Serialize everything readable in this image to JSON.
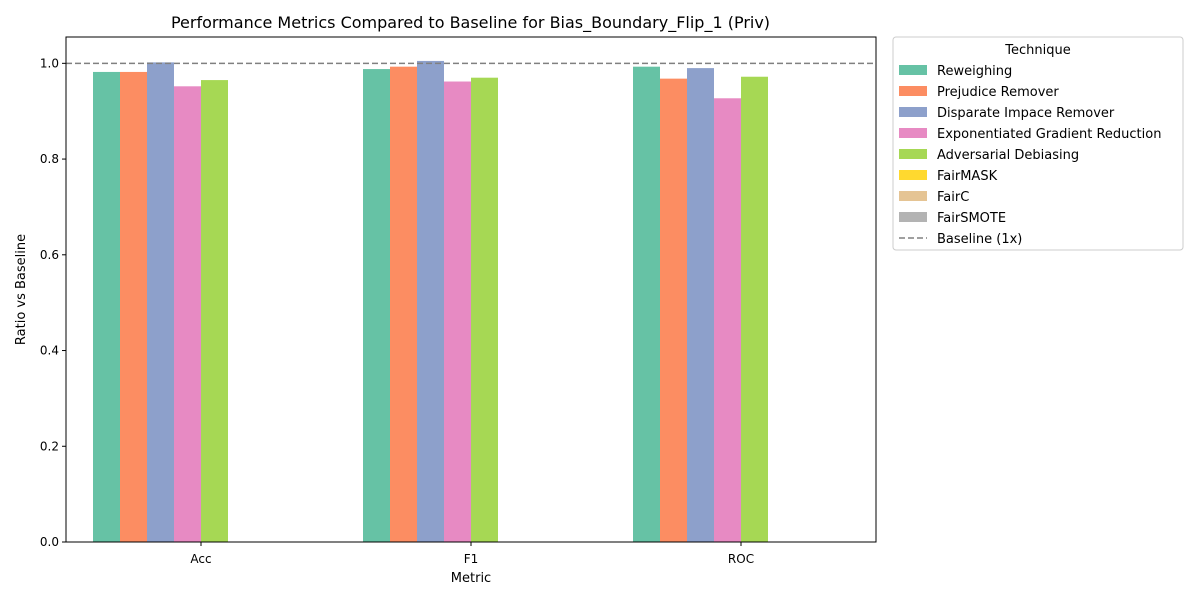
{
  "chart_data": {
    "type": "bar",
    "title": "Performance Metrics Compared to Baseline for Bias_Boundary_Flip_1 (Priv)",
    "xlabel": "Metric",
    "ylabel": "Ratio vs Baseline",
    "categories": [
      "Acc",
      "F1",
      "ROC"
    ],
    "ylim": [
      0,
      1.055
    ],
    "yticks": [
      "0.0",
      "0.2",
      "0.4",
      "0.6",
      "0.8",
      "1.0"
    ],
    "ytick_values": [
      0,
      0.2,
      0.4,
      0.6,
      0.8,
      1.0
    ],
    "series": [
      {
        "name": "Reweighing",
        "color": "#66c2a5",
        "values": [
          0.982,
          0.988,
          0.993
        ]
      },
      {
        "name": "Prejudice Remover",
        "color": "#fc8d62",
        "values": [
          0.982,
          0.993,
          0.968
        ]
      },
      {
        "name": "Disparate Impace Remover",
        "color": "#8da0cb",
        "values": [
          1.002,
          1.005,
          0.99
        ]
      },
      {
        "name": "Exponentiated Gradient Reduction",
        "color": "#e78ac3",
        "values": [
          0.952,
          0.962,
          0.927
        ]
      },
      {
        "name": "Adversarial Debiasing",
        "color": "#a6d854",
        "values": [
          0.965,
          0.97,
          0.972
        ]
      },
      {
        "name": "FairMASK",
        "color": "#ffd92f",
        "values": [
          null,
          null,
          null
        ]
      },
      {
        "name": "FairC",
        "color": "#e5c494",
        "values": [
          null,
          null,
          null
        ]
      },
      {
        "name": "FairSMOTE",
        "color": "#b3b3b3",
        "values": [
          null,
          null,
          null
        ]
      }
    ],
    "baseline": {
      "name": "Baseline (1x)",
      "value": 1.0,
      "color": "#808080",
      "style": "dashed"
    },
    "legend": {
      "title": "Technique",
      "placement": "outside-top-right"
    },
    "grid": false
  }
}
